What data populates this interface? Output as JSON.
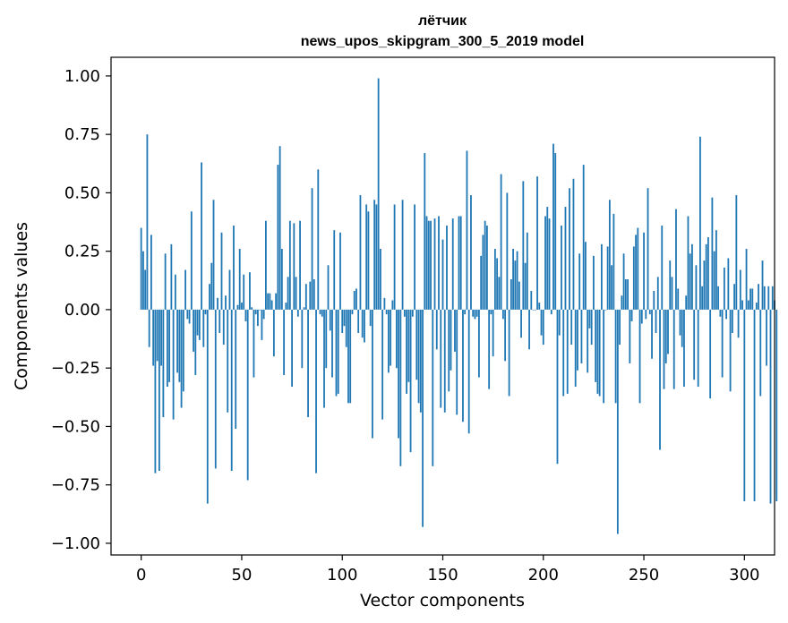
{
  "chart_data": {
    "type": "bar",
    "title": "лётчик",
    "subtitle": "news_upos_skipgram_300_5_2019 model",
    "xlabel": "Vector components",
    "ylabel": "Components values",
    "xlim": [
      -15,
      315
    ],
    "ylim": [
      -1.05,
      1.08
    ],
    "xticks": [
      0,
      50,
      100,
      150,
      200,
      250,
      300
    ],
    "yticks": [
      -1.0,
      -0.75,
      -0.5,
      -0.25,
      0.0,
      0.25,
      0.5,
      0.75,
      1.0
    ],
    "xtick_labels": [
      "0",
      "50",
      "100",
      "150",
      "200",
      "250",
      "300"
    ],
    "ytick_labels": [
      "−1.00",
      "−0.75",
      "−0.50",
      "−0.25",
      "0.00",
      "0.25",
      "0.50",
      "0.75",
      "1.00"
    ],
    "grid": false,
    "bar_color": "#1f77b4",
    "values": [
      0.35,
      0.25,
      0.17,
      0.75,
      -0.16,
      0.32,
      -0.24,
      -0.7,
      -0.22,
      -0.69,
      -0.24,
      -0.46,
      0.24,
      -0.33,
      -0.31,
      0.28,
      -0.47,
      0.15,
      -0.27,
      -0.31,
      -0.42,
      -0.35,
      0.17,
      -0.04,
      -0.06,
      0.42,
      -0.18,
      -0.28,
      -0.11,
      -0.13,
      0.63,
      -0.16,
      -0.02,
      -0.83,
      0.11,
      0.2,
      0.47,
      -0.68,
      0.05,
      -0.1,
      0.33,
      -0.15,
      0.06,
      -0.44,
      0.17,
      -0.69,
      0.36,
      -0.51,
      0.02,
      0.26,
      0.03,
      0.15,
      -0.05,
      -0.73,
      0.16,
      0.01,
      -0.29,
      -0.02,
      -0.07,
      0.0,
      -0.13,
      -0.04,
      0.38,
      0.07,
      0.07,
      0.04,
      -0.2,
      0.07,
      0.62,
      0.7,
      0.26,
      -0.28,
      0.03,
      0.14,
      0.38,
      -0.33,
      0.37,
      0.14,
      -0.03,
      0.38,
      -0.25,
      0.01,
      0.11,
      -0.46,
      0.12,
      0.52,
      0.13,
      -0.7,
      0.6,
      -0.02,
      -0.03,
      -0.42,
      -0.25,
      0.19,
      -0.09,
      -0.29,
      0.34,
      -0.37,
      -0.36,
      0.33,
      -0.1,
      -0.07,
      -0.16,
      -0.4,
      -0.4,
      -0.02,
      0.08,
      0.09,
      -0.1,
      0.49,
      -0.12,
      -0.14,
      0.45,
      0.42,
      -0.07,
      -0.55,
      0.47,
      0.45,
      0.99,
      0.26,
      -0.47,
      0.05,
      -0.02,
      -0.27,
      -0.24,
      0.04,
      0.45,
      -0.25,
      -0.55,
      -0.67,
      0.47,
      -0.03,
      -0.36,
      -0.31,
      -0.61,
      -0.03,
      0.45,
      -0.3,
      -0.4,
      -0.44,
      -0.93,
      0.67,
      0.4,
      0.38,
      0.38,
      -0.67,
      0.39,
      -0.17,
      0.4,
      -0.42,
      0.3,
      -0.44,
      0.36,
      -0.35,
      -0.26,
      0.39,
      -0.18,
      -0.45,
      0.4,
      0.4,
      -0.48,
      -0.02,
      0.68,
      -0.53,
      0.49,
      -0.03,
      -0.04,
      -0.03,
      -0.29,
      0.23,
      0.32,
      0.38,
      0.36,
      -0.34,
      -0.02,
      -0.2,
      0.26,
      0.22,
      0.14,
      0.58,
      -0.04,
      -0.22,
      0.5,
      -0.37,
      0.13,
      0.26,
      0.21,
      0.25,
      0.12,
      -0.12,
      0.55,
      0.2,
      0.33,
      -0.17,
      0.08,
      0.0,
      0.0,
      0.57,
      0.03,
      -0.11,
      -0.15,
      0.4,
      0.44,
      0.39,
      -0.02,
      0.71,
      0.67,
      -0.66,
      -0.11,
      0.36,
      -0.37,
      0.44,
      -0.36,
      0.52,
      -0.15,
      0.56,
      -0.33,
      -0.26,
      0.24,
      -0.23,
      0.62,
      0.29,
      -0.27,
      -0.08,
      -0.15,
      0.23,
      -0.31,
      -0.36,
      -0.37,
      0.28,
      -0.4,
      0.0,
      0.27,
      0.47,
      0.19,
      0.41,
      -0.4,
      -0.96,
      -0.15,
      0.06,
      0.24,
      0.13,
      0.13,
      -0.23,
      -0.05,
      0.27,
      0.32,
      0.35,
      -0.4,
      -0.06,
      0.33,
      -0.04,
      0.52,
      -0.02,
      -0.21,
      0.08,
      -0.1,
      0.14,
      -0.6,
      0.36,
      -0.34,
      -0.23,
      -0.19,
      0.21,
      0.14,
      -0.34,
      0.43,
      0.09,
      -0.11,
      -0.16,
      -0.33,
      0.06,
      0.4,
      0.24,
      0.28,
      -0.3,
      0.19,
      -0.33,
      0.74,
      0.1,
      0.21,
      0.28,
      0.31,
      -0.38,
      0.48,
      0.25,
      0.34,
      0.1,
      -0.03,
      -0.29,
      0.18,
      -0.04,
      0.22,
      -0.35,
      -0.1,
      0.11,
      0.49,
      -0.12,
      0.17,
      0.04,
      -0.82,
      0.26,
      0.04,
      0.09,
      0.09,
      -0.82,
      0.03,
      0.11,
      -0.37,
      0.21,
      0.1,
      -0.24,
      0.1,
      -0.83,
      0.1,
      0.04,
      -0.82
    ]
  }
}
